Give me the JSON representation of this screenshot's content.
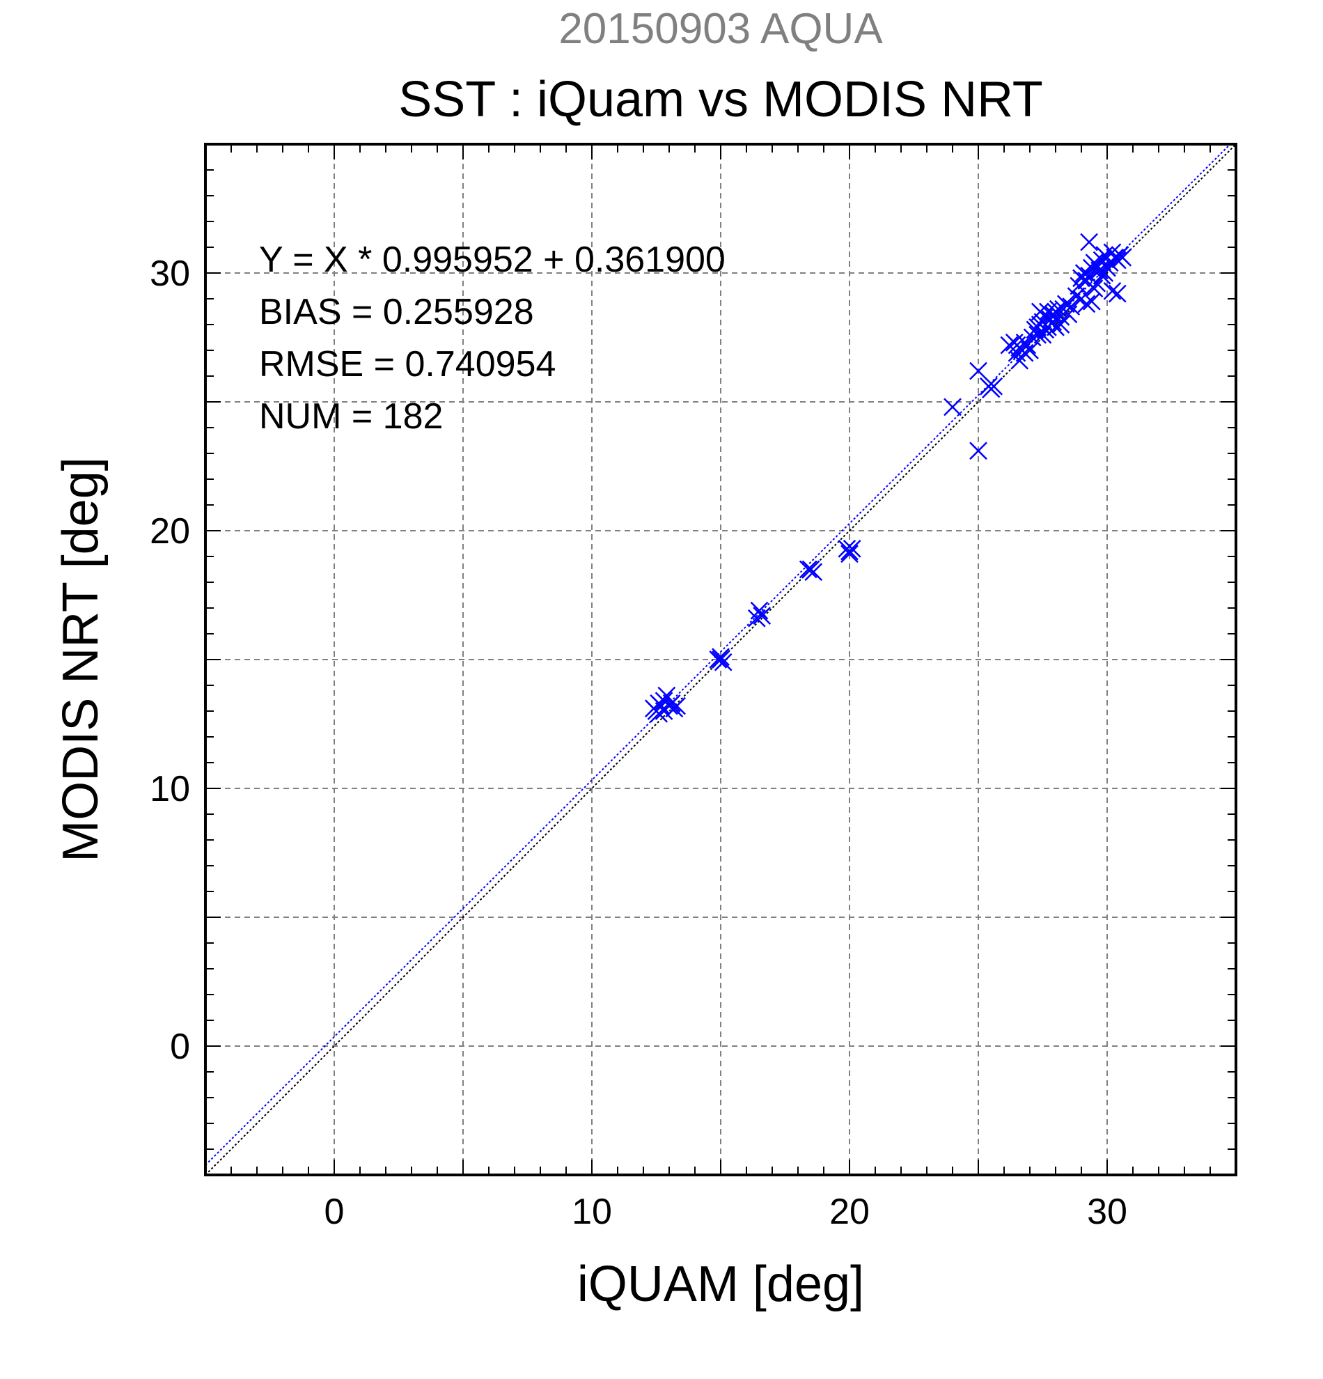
{
  "colors": {
    "subtitle": "#808080",
    "title": "#000000",
    "series": "#0000ff",
    "one_to_one_line": "#000000",
    "grid": "#808080",
    "axes": "#000000",
    "background": "#ffffff"
  },
  "chart_data": {
    "type": "scatter",
    "subtitle": "20150903 AQUA",
    "title": "SST : iQuam vs MODIS NRT",
    "xlabel": "iQUAM [deg]",
    "ylabel": "MODIS NRT [deg]",
    "xlim": [
      -5,
      35
    ],
    "ylim": [
      -5,
      35
    ],
    "xticks": [
      0,
      10,
      20,
      30
    ],
    "yticks": [
      0,
      10,
      20,
      30
    ],
    "grid_step": 5,
    "minor_tick_step": 1,
    "grid": true,
    "marker": "x",
    "annotations": [
      "Y = X * 0.995952 + 0.361900",
      "BIAS = 0.255928",
      "RMSE = 0.740954",
      "NUM = 182"
    ],
    "regression": {
      "slope": 0.995952,
      "intercept": 0.3619
    },
    "reference_line": {
      "slope": 1,
      "intercept": 0
    },
    "points": [
      [
        12.4,
        13.1
      ],
      [
        12.5,
        13.0
      ],
      [
        12.6,
        12.9
      ],
      [
        12.7,
        13.2
      ],
      [
        12.8,
        13.4
      ],
      [
        12.9,
        13.6
      ],
      [
        13.0,
        13.2
      ],
      [
        13.1,
        13.3
      ],
      [
        13.3,
        13.2
      ],
      [
        12.6,
        13.3
      ],
      [
        12.8,
        13.0
      ],
      [
        13.2,
        13.1
      ],
      [
        14.9,
        15.0
      ],
      [
        15.0,
        15.1
      ],
      [
        15.1,
        14.9
      ],
      [
        15.0,
        15.0
      ],
      [
        16.4,
        16.6
      ],
      [
        16.5,
        16.9
      ],
      [
        16.6,
        16.7
      ],
      [
        18.4,
        18.5
      ],
      [
        18.5,
        18.5
      ],
      [
        18.6,
        18.4
      ],
      [
        19.9,
        19.3
      ],
      [
        20.0,
        19.2
      ],
      [
        20.1,
        19.3
      ],
      [
        20.0,
        19.1
      ],
      [
        24.0,
        24.8
      ],
      [
        25.0,
        26.2
      ],
      [
        25.0,
        23.1
      ],
      [
        25.4,
        25.6
      ],
      [
        25.5,
        25.5
      ],
      [
        25.6,
        25.6
      ],
      [
        26.2,
        27.2
      ],
      [
        26.4,
        27.3
      ],
      [
        26.5,
        27.2
      ],
      [
        26.6,
        27.1
      ],
      [
        26.7,
        27.0
      ],
      [
        26.8,
        27.3
      ],
      [
        26.9,
        27.2
      ],
      [
        26.6,
        26.6
      ],
      [
        26.5,
        26.9
      ],
      [
        26.8,
        26.9
      ],
      [
        27.0,
        27.0
      ],
      [
        27.1,
        27.5
      ],
      [
        27.2,
        27.8
      ],
      [
        27.3,
        27.9
      ],
      [
        27.4,
        28.0
      ],
      [
        27.5,
        28.1
      ],
      [
        27.6,
        28.3
      ],
      [
        27.7,
        28.5
      ],
      [
        27.5,
        27.6
      ],
      [
        27.3,
        27.6
      ],
      [
        27.4,
        28.5
      ],
      [
        27.6,
        27.8
      ],
      [
        27.7,
        27.9
      ],
      [
        27.8,
        28.2
      ],
      [
        27.9,
        28.4
      ],
      [
        28.0,
        28.5
      ],
      [
        28.1,
        28.6
      ],
      [
        28.2,
        28.3
      ],
      [
        28.3,
        28.6
      ],
      [
        28.5,
        28.4
      ],
      [
        28.6,
        28.7
      ],
      [
        28.0,
        27.9
      ],
      [
        28.2,
        28.0
      ],
      [
        27.9,
        28.1
      ],
      [
        28.4,
        28.8
      ],
      [
        28.8,
        29.1
      ],
      [
        28.9,
        29.5
      ],
      [
        29.0,
        29.8
      ],
      [
        29.1,
        30.0
      ],
      [
        29.2,
        29.7
      ],
      [
        29.3,
        29.9
      ],
      [
        29.4,
        30.2
      ],
      [
        29.5,
        30.4
      ],
      [
        29.6,
        30.3
      ],
      [
        29.7,
        30.1
      ],
      [
        29.8,
        30.5
      ],
      [
        29.9,
        30.7
      ],
      [
        30.0,
        30.6
      ],
      [
        30.1,
        30.4
      ],
      [
        30.2,
        30.8
      ],
      [
        30.3,
        30.6
      ],
      [
        30.4,
        30.5
      ],
      [
        30.5,
        30.7
      ],
      [
        30.6,
        30.6
      ],
      [
        29.3,
        31.2
      ],
      [
        29.2,
        28.8
      ],
      [
        29.4,
        28.9
      ],
      [
        30.2,
        29.3
      ],
      [
        30.4,
        29.2
      ],
      [
        29.0,
        29.0
      ],
      [
        29.5,
        29.4
      ],
      [
        29.8,
        29.9
      ],
      [
        30.0,
        30.2
      ],
      [
        29.6,
        29.6
      ],
      [
        29.9,
        30.0
      ]
    ]
  }
}
